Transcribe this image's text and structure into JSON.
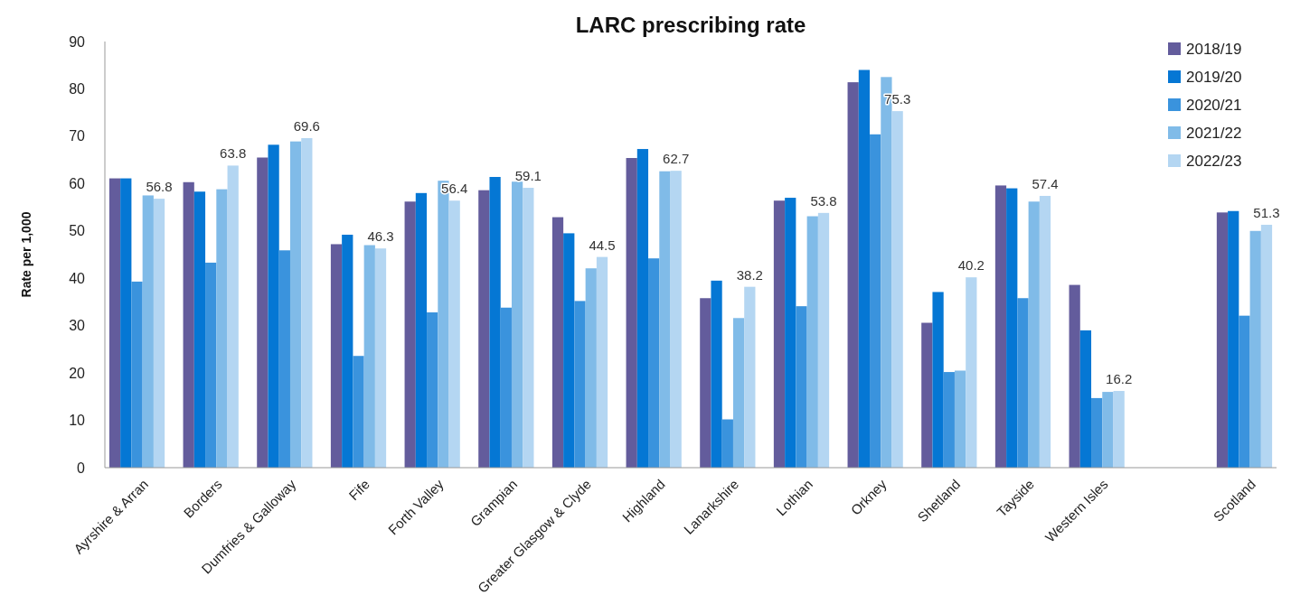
{
  "chart_data": {
    "type": "bar",
    "title": "LARC prescribing rate",
    "ylabel": "Rate per 1,000",
    "categories": [
      "Ayrshire & Arran",
      "Borders",
      "Dumfries & Galloway",
      "Fife",
      "Forth Valley",
      "Grampian",
      "Greater Glasgow & Clyde",
      "Highland",
      "Lanarkshire",
      "Lothian",
      "Orkney",
      "Shetland",
      "Tayside",
      "Western Isles",
      null,
      "Scotland"
    ],
    "series": [
      {
        "name": "2018/19",
        "color": "#635c9c",
        "values": [
          61.1,
          60.3,
          65.5,
          47.2,
          56.2,
          58.6,
          52.9,
          65.4,
          35.8,
          56.4,
          81.4,
          30.6,
          59.6,
          38.6,
          null,
          53.9
        ]
      },
      {
        "name": "2019/20",
        "color": "#0577d4",
        "values": [
          61.1,
          58.3,
          68.2,
          49.2,
          58.0,
          61.4,
          49.5,
          67.3,
          39.5,
          57.0,
          84.0,
          37.1,
          59.0,
          29.0,
          null,
          54.2
        ]
      },
      {
        "name": "2020/21",
        "color": "#3a93dd",
        "values": [
          39.3,
          43.3,
          45.9,
          23.6,
          32.8,
          33.8,
          35.2,
          44.2,
          10.2,
          34.1,
          70.4,
          20.2,
          35.8,
          14.7,
          null,
          32.1
        ]
      },
      {
        "name": "2021/22",
        "color": "#80bbe8",
        "values": [
          57.5,
          58.8,
          68.9,
          47.0,
          60.6,
          60.4,
          42.1,
          62.6,
          31.6,
          53.1,
          82.5,
          20.5,
          56.2,
          16.0,
          null,
          50.0
        ]
      },
      {
        "name": "2022/23",
        "color": "#b4d6f2",
        "values": [
          56.8,
          63.8,
          69.6,
          46.3,
          56.4,
          59.1,
          44.5,
          62.7,
          38.2,
          53.8,
          75.3,
          40.2,
          57.4,
          16.2,
          null,
          51.3
        ],
        "value_labels": [
          "56.8",
          "63.8",
          "69.6",
          "46.3",
          "56.4",
          "59.1",
          "44.5",
          "62.7",
          "38.2",
          "53.8",
          "75.3",
          "40.2",
          "57.4",
          "16.2",
          null,
          "51.3"
        ]
      }
    ],
    "ylim": [
      0,
      90
    ],
    "yticks": [
      0,
      10,
      20,
      30,
      40,
      50,
      60,
      70,
      80,
      90
    ],
    "grid": false,
    "legend": "top right"
  }
}
